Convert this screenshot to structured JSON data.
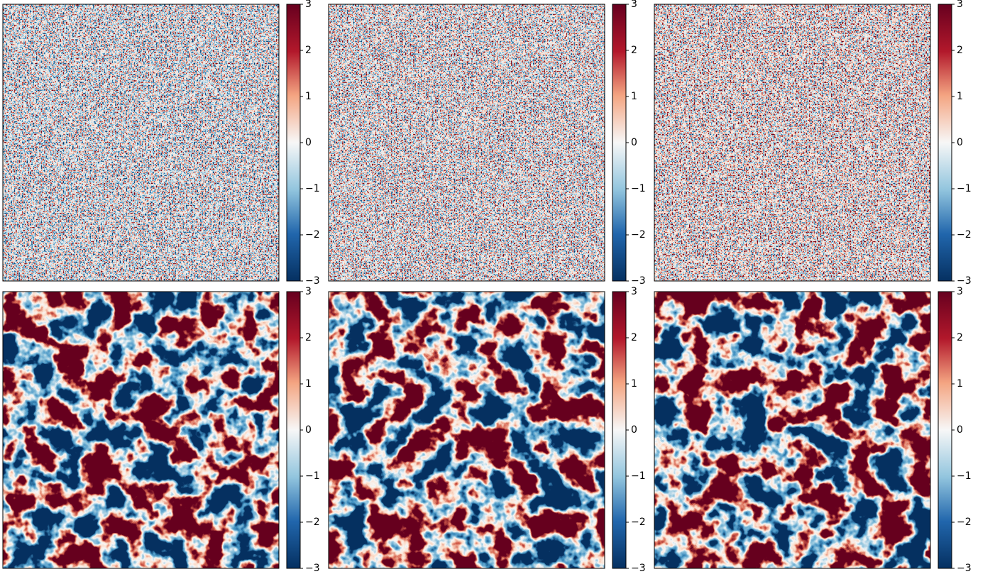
{
  "chart_data": [
    {
      "type": "heatmap",
      "cmap": "RdBu_r",
      "zlim": [
        -3,
        3
      ],
      "zticks": [
        {
          "value": -3,
          "label": "−3"
        },
        {
          "value": -2,
          "label": "−2"
        },
        {
          "value": -1,
          "label": "−1"
        },
        0,
        1,
        2,
        3
      ]
    },
    {
      "type": "heatmap",
      "cmap": "RdBu_r",
      "zlim": [
        -3,
        3
      ],
      "zticks": [
        {
          "value": -3,
          "label": "−3"
        },
        {
          "value": -2,
          "label": "−2"
        },
        {
          "value": -1,
          "label": "−1"
        },
        0,
        1,
        2,
        3
      ]
    },
    {
      "type": "heatmap",
      "cmap": "RdBu_r",
      "zlim": [
        -3,
        3
      ],
      "zticks": [
        {
          "value": -3,
          "label": "−3"
        },
        {
          "value": -2,
          "label": "−2"
        },
        {
          "value": -1,
          "label": "−1"
        },
        0,
        1,
        2,
        3
      ]
    },
    {
      "type": "heatmap",
      "cmap": "RdBu_r",
      "zlim": [
        -3,
        3
      ],
      "zticks": [
        {
          "value": -3,
          "label": "−3"
        },
        {
          "value": -2,
          "label": "−2"
        },
        {
          "value": -1,
          "label": "−1"
        },
        0,
        1,
        2,
        3
      ]
    },
    {
      "type": "heatmap",
      "cmap": "RdBu_r",
      "zlim": [
        -3,
        3
      ],
      "zticks": [
        {
          "value": -3,
          "label": "−3"
        },
        {
          "value": -2,
          "label": "−2"
        },
        {
          "value": -1,
          "label": "−1"
        },
        0,
        1,
        2,
        3
      ]
    },
    {
      "type": "heatmap",
      "cmap": "RdBu_r",
      "zlim": [
        -3,
        3
      ],
      "zticks": [
        {
          "value": -3,
          "label": "−3"
        },
        {
          "value": -2,
          "label": "−2"
        },
        {
          "value": -1,
          "label": "−1"
        },
        0,
        1,
        2,
        3
      ]
    }
  ]
}
